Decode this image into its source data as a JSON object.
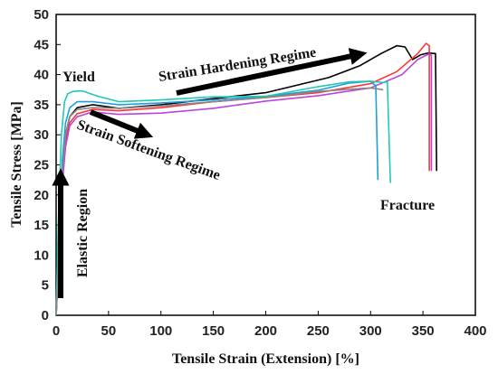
{
  "chart_data": {
    "type": "line",
    "xlabel": "Tensile Strain (Extension) [%]",
    "ylabel": "Tensile Stress [MPa]",
    "xlim": [
      0,
      400
    ],
    "ylim": [
      0,
      50
    ],
    "xticks": [
      "0",
      "50",
      "100",
      "150",
      "200",
      "250",
      "300",
      "350",
      "400"
    ],
    "yticks": [
      "0",
      "5",
      "10",
      "15",
      "20",
      "25",
      "30",
      "35",
      "40",
      "45",
      "50"
    ],
    "grid": false,
    "legend": "none",
    "series": [
      {
        "color": "#000000",
        "points": [
          [
            0,
            0
          ],
          [
            3,
            12
          ],
          [
            6,
            24
          ],
          [
            9,
            30
          ],
          [
            13,
            33
          ],
          [
            20,
            34.5
          ],
          [
            35,
            35
          ],
          [
            60,
            34.4
          ],
          [
            100,
            35
          ],
          [
            150,
            36
          ],
          [
            200,
            37
          ],
          [
            260,
            39.5
          ],
          [
            290,
            41.5
          ],
          [
            310,
            43.5
          ],
          [
            325,
            44.8
          ],
          [
            333,
            44.6
          ],
          [
            340,
            42.5
          ],
          [
            348,
            43.3
          ],
          [
            355,
            43.6
          ],
          [
            362,
            43.5
          ],
          [
            363,
            24
          ]
        ]
      },
      {
        "color": "#ff3333",
        "points": [
          [
            0,
            0
          ],
          [
            3,
            11
          ],
          [
            6,
            22
          ],
          [
            9,
            29
          ],
          [
            13,
            32
          ],
          [
            20,
            33.5
          ],
          [
            35,
            34.2
          ],
          [
            60,
            34
          ],
          [
            100,
            34.5
          ],
          [
            150,
            35.5
          ],
          [
            200,
            36.2
          ],
          [
            250,
            37
          ],
          [
            300,
            38.5
          ],
          [
            325,
            40.5
          ],
          [
            345,
            43.5
          ],
          [
            353,
            45.2
          ],
          [
            356,
            44.8
          ],
          [
            356,
            24
          ]
        ]
      },
      {
        "color": "#bb44dd",
        "points": [
          [
            0,
            0
          ],
          [
            3,
            11
          ],
          [
            6,
            22
          ],
          [
            9,
            28
          ],
          [
            13,
            31.5
          ],
          [
            20,
            33
          ],
          [
            35,
            33.8
          ],
          [
            60,
            33.4
          ],
          [
            100,
            33.6
          ],
          [
            150,
            34.4
          ],
          [
            200,
            35.6
          ],
          [
            250,
            36.5
          ],
          [
            300,
            37.8
          ],
          [
            330,
            40
          ],
          [
            345,
            42.5
          ],
          [
            355,
            43.4
          ],
          [
            358,
            43.2
          ],
          [
            358,
            24
          ]
        ]
      },
      {
        "color": "#1f9fe0",
        "points": [
          [
            0,
            0
          ],
          [
            3,
            13
          ],
          [
            6,
            26
          ],
          [
            9,
            32
          ],
          [
            13,
            34.5
          ],
          [
            20,
            35.5
          ],
          [
            35,
            35.5
          ],
          [
            60,
            35
          ],
          [
            100,
            35.3
          ],
          [
            150,
            35.8
          ],
          [
            200,
            36.4
          ],
          [
            250,
            37.4
          ],
          [
            280,
            38.6
          ],
          [
            300,
            38.9
          ],
          [
            303,
            38.4
          ],
          [
            305,
            38.2
          ],
          [
            307,
            22.5
          ]
        ]
      },
      {
        "color": "#20c9b4",
        "points": [
          [
            0,
            0
          ],
          [
            2,
            15
          ],
          [
            5,
            30
          ],
          [
            8,
            35.5
          ],
          [
            11,
            36.8
          ],
          [
            16,
            37.2
          ],
          [
            25,
            37.3
          ],
          [
            40,
            36.4
          ],
          [
            60,
            35.5
          ],
          [
            100,
            35.8
          ],
          [
            150,
            36.3
          ],
          [
            200,
            36.4
          ],
          [
            250,
            38
          ],
          [
            280,
            38.8
          ],
          [
            300,
            38.9
          ],
          [
            312,
            38.7
          ],
          [
            316,
            38.8
          ],
          [
            319,
            22
          ]
        ]
      },
      {
        "color": "#888888",
        "points": [
          [
            0,
            0
          ],
          [
            3,
            12
          ],
          [
            6,
            24
          ],
          [
            9,
            30
          ],
          [
            13,
            33
          ],
          [
            20,
            34.2
          ],
          [
            35,
            34.5
          ],
          [
            60,
            34.4
          ],
          [
            100,
            34.8
          ],
          [
            150,
            35.5
          ],
          [
            200,
            36.2
          ],
          [
            250,
            37.2
          ],
          [
            300,
            37.8
          ],
          [
            312,
            37.5
          ]
        ]
      }
    ],
    "annotations": [
      {
        "text": "Yield"
      },
      {
        "text": "Strain Hardening Regime"
      },
      {
        "text": "Strain Softening Regime"
      },
      {
        "text": "Elastic Region"
      },
      {
        "text": "Fracture"
      }
    ]
  }
}
